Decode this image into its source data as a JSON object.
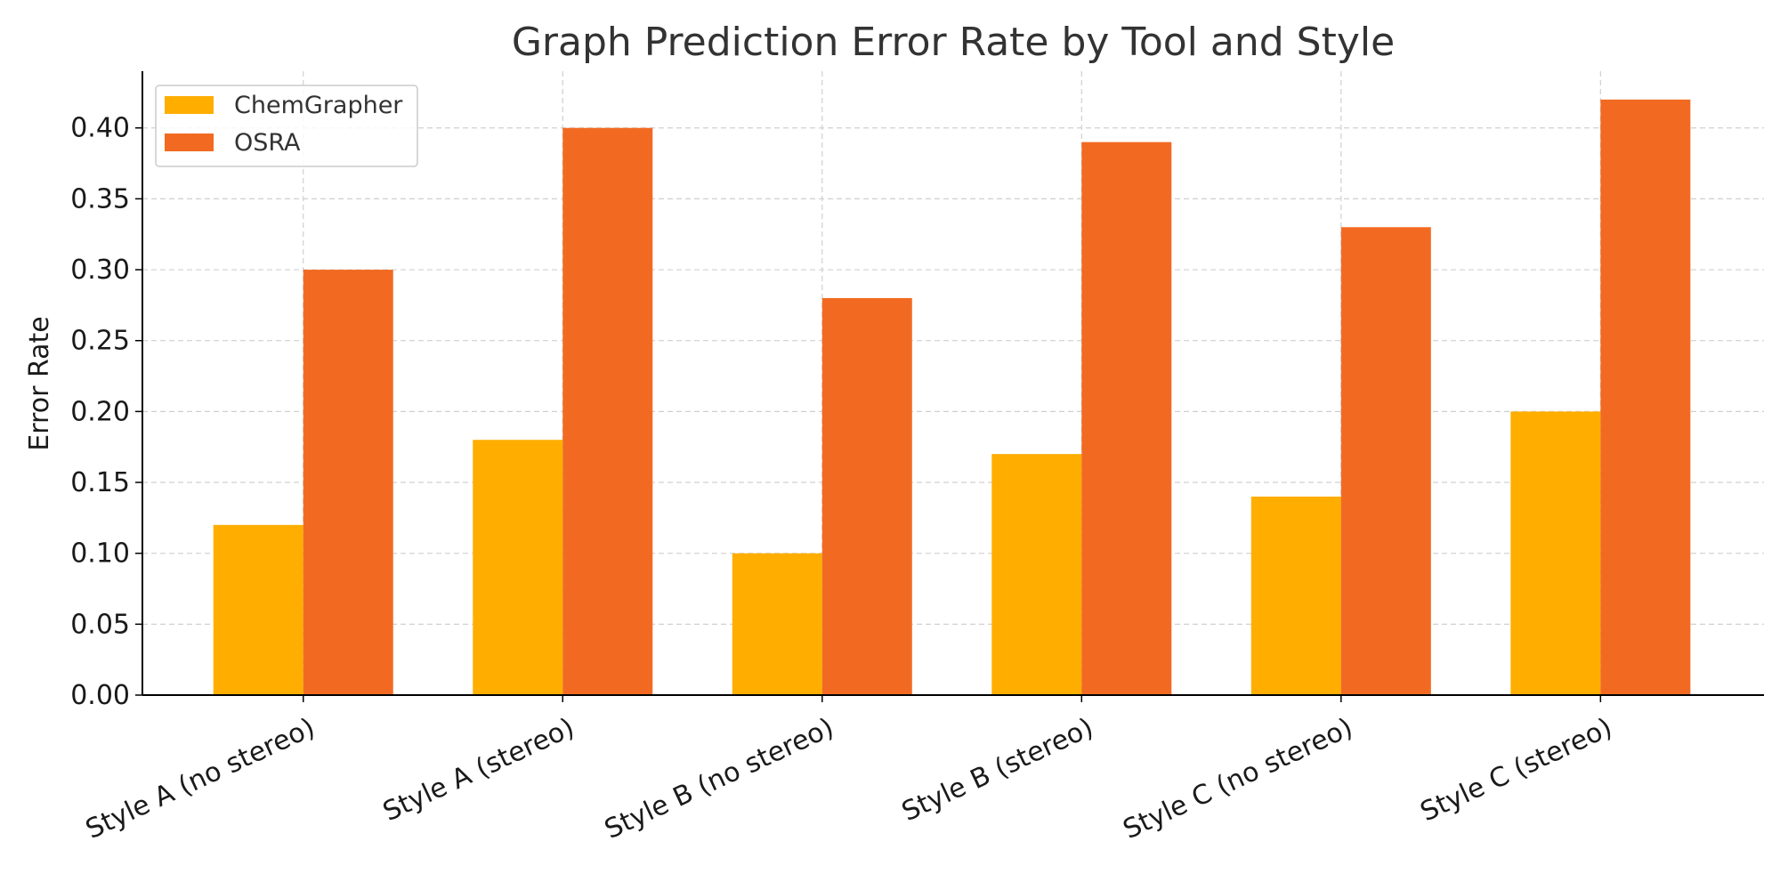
{
  "chart_data": {
    "type": "bar",
    "title": "Graph Prediction Error Rate by Tool and Style",
    "xlabel": "",
    "ylabel": "Error Rate",
    "categories": [
      "Style A (no stereo)",
      "Style A (stereo)",
      "Style B (no stereo)",
      "Style B (stereo)",
      "Style C (no stereo)",
      "Style C (stereo)"
    ],
    "series": [
      {
        "name": "ChemGrapher",
        "color": "#FFAE00",
        "values": [
          0.12,
          0.18,
          0.1,
          0.17,
          0.14,
          0.2
        ]
      },
      {
        "name": "OSRA",
        "color": "#F26A22",
        "values": [
          0.3,
          0.4,
          0.28,
          0.39,
          0.33,
          0.42
        ]
      }
    ],
    "ylim": [
      0,
      0.44
    ],
    "yticks": [
      "0.00",
      "0.05",
      "0.10",
      "0.15",
      "0.20",
      "0.25",
      "0.30",
      "0.35",
      "0.40"
    ],
    "grid": true,
    "legend": "top-left"
  }
}
